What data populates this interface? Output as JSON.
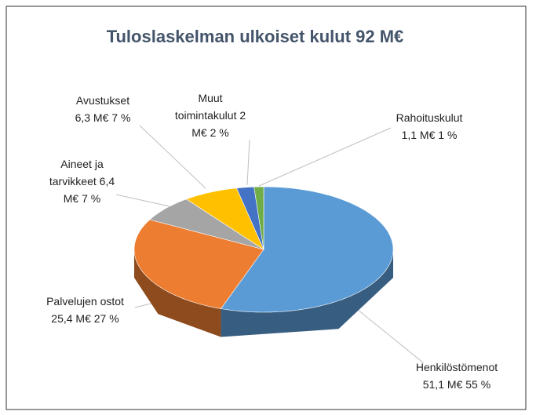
{
  "chart_data": {
    "type": "pie3d",
    "title": "Tuloslaskelman ulkoiset kulut 92 M€",
    "categories": [
      "Henkilöstömenot",
      "Palvelujen ostot",
      "Aineet ja tarvikkeet",
      "Avustukset",
      "Muut toimintakulut",
      "Rahoituskulut"
    ],
    "values": [
      51.1,
      25.4,
      6.4,
      6.3,
      2,
      1.1
    ],
    "value_labels": [
      "51,1 M€ 55 %",
      "25,4 M€ 27 %",
      "6,4 M€ 7 %",
      "6,3 M€ 7 %",
      "2 M€ 2 %",
      "1,1 M€ 1 %"
    ],
    "colors": [
      "#5b9bd5",
      "#ed7d31",
      "#a5a5a5",
      "#ffc000",
      "#4472c4",
      "#70ad47"
    ]
  }
}
